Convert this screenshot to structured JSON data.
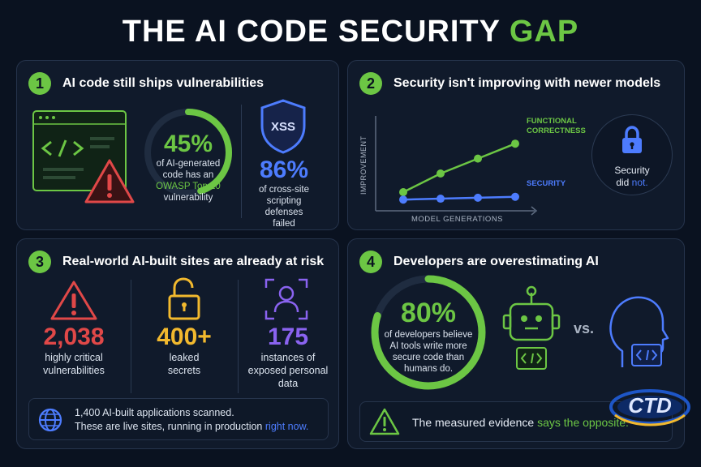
{
  "title": {
    "main": "THE AI CODE SECURITY",
    "accent": "GAP"
  },
  "colors": {
    "green": "#6cc644",
    "blue": "#4d7cfe",
    "red": "#e04848",
    "yellow": "#f2b92e",
    "purple": "#8a63f0",
    "background": "#0a1220",
    "panel": "#101a2b"
  },
  "panel1": {
    "number": "1",
    "title": "AI code still ships vulnerabilities",
    "stat1": {
      "value": "45%",
      "line1": "of AI-generated",
      "line2": "code has an",
      "highlight": "OWASP Top 10",
      "line4": "vulnerability",
      "ring_fraction": 0.45
    },
    "shield_label": "XSS",
    "stat2": {
      "value": "86%",
      "line1": "of cross-site",
      "line2": "scripting defenses",
      "line3": "failed"
    },
    "icons": [
      "code-window-icon",
      "warning-icon",
      "shield-icon"
    ]
  },
  "panel2": {
    "number": "2",
    "title": "Security isn't improving with newer models",
    "y_axis_label": "IMPROVEMENT",
    "x_axis_label": "MODEL GENERATIONS",
    "series1_label_line1": "FUNCTIONAL",
    "series1_label_line2": "CORRECTNESS",
    "series2_label": "SECURITY",
    "callout_line1": "Security",
    "callout_line2a": "did",
    "callout_line2b": "not.",
    "chart_data": {
      "type": "line",
      "series": [
        {
          "name": "FUNCTIONAL CORRECTNESS",
          "values": [
            1,
            2,
            2.8,
            3.6
          ],
          "color": "#6cc644"
        },
        {
          "name": "SECURITY",
          "values": [
            0.6,
            0.65,
            0.7,
            0.75
          ],
          "color": "#4d7cfe"
        }
      ],
      "xlabel": "MODEL GENERATIONS",
      "ylabel": "IMPROVEMENT",
      "ylim": [
        0,
        5
      ]
    }
  },
  "panel3": {
    "number": "3",
    "title": "Real-world AI-built sites are already at risk",
    "stats": [
      {
        "value": "2,038",
        "line1": "highly critical",
        "line2": "vulnerabilities",
        "line3": ""
      },
      {
        "value": "400+",
        "line1": "leaked",
        "line2": "secrets",
        "line3": ""
      },
      {
        "value": "175",
        "line1": "instances of",
        "line2": "exposed personal",
        "line3": "data"
      }
    ],
    "footer_line1": "1,400 AI-built applications scanned.",
    "footer_line2": "These are live sites, running in production",
    "footer_highlight": "right now."
  },
  "panel4": {
    "number": "4",
    "title": "Developers are overestimating AI",
    "stat": {
      "value": "80%",
      "line1": "of developers believe",
      "line2": "AI tools write more",
      "line3": "secure code than",
      "line4": "humans do.",
      "ring_fraction": 0.8
    },
    "vs": "vs.",
    "footer_text": "The measured evidence",
    "footer_highlight": "says the opposite."
  },
  "watermark": "CTD"
}
